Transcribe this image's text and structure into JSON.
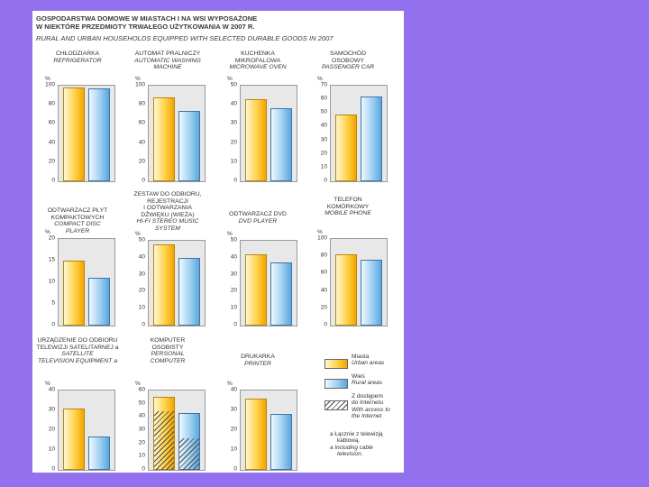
{
  "header": {
    "title_pl_line1": "GOSPODARSTWA DOMOWE W  MIASTACH I NA WSI WYPOSAŻONE",
    "title_pl_line2": "W NIEKTÓRE PRZEDMIOTY TRWAŁEGO UŻYTKOWANIA W 2007 R.",
    "title_en": "RURAL AND URBAN HOUSEHOLDS EQUIPPED WITH SELECTED DURABLE GOODS IN 2007"
  },
  "colors": {
    "urban": "#ffd24a",
    "rural": "#9fd0f2",
    "background": "#9370ee"
  },
  "legend": {
    "urban_pl": "Miasta",
    "urban_en": "Urban areas",
    "rural_pl": "Wieś",
    "rural_en": "Rural areas",
    "internet_pl_1": "Z dostępem",
    "internet_pl_2": "do Internetu",
    "internet_en_1": "With access to",
    "internet_en_2": "the Internet"
  },
  "footnote": {
    "pl_1": "a  Łącznie z telewizją",
    "pl_2": "kablową.",
    "en_1": "a  Including cable",
    "en_2": "television."
  },
  "chart_data": [
    {
      "type": "bar",
      "label_pl": [
        "CHŁODZIARKA"
      ],
      "label_en": [
        "REFRIGERATOR"
      ],
      "unit": "%",
      "ylim": [
        0,
        100
      ],
      "ticks": [
        0,
        20,
        40,
        60,
        80,
        100
      ],
      "categories": [
        "Urban",
        "Rural"
      ],
      "values": [
        98,
        97
      ]
    },
    {
      "type": "bar",
      "label_pl": [
        "AUTOMAT PRALNICZY"
      ],
      "label_en": [
        "AUTOMATIC WASHING",
        "MACHINE"
      ],
      "unit": "%",
      "ylim": [
        0,
        100
      ],
      "ticks": [
        0,
        20,
        40,
        60,
        80,
        100
      ],
      "categories": [
        "Urban",
        "Rural"
      ],
      "values": [
        88,
        74
      ]
    },
    {
      "type": "bar",
      "label_pl": [
        "KUCHENKA",
        "MIKROFALOWA"
      ],
      "label_en": [
        "MICROWAVE OVEN"
      ],
      "unit": "%",
      "ylim": [
        0,
        50
      ],
      "ticks": [
        0,
        10,
        20,
        30,
        40,
        50
      ],
      "categories": [
        "Urban",
        "Rural"
      ],
      "values": [
        43,
        38
      ]
    },
    {
      "type": "bar",
      "label_pl": [
        "SAMOCHÓD",
        "OSOBOWY"
      ],
      "label_en": [
        "PASSENGER CAR"
      ],
      "unit": "%",
      "ylim": [
        0,
        70
      ],
      "ticks": [
        0,
        10,
        20,
        30,
        40,
        50,
        60,
        70
      ],
      "categories": [
        "Urban",
        "Rural"
      ],
      "values": [
        49,
        62
      ]
    },
    {
      "type": "bar",
      "label_pl": [
        "ODTWARZACZ PŁYT",
        "KOMPAKTOWYCH"
      ],
      "label_en": [
        "COMPACT DISC",
        "PLAYER"
      ],
      "unit": "%",
      "ylim": [
        0,
        20
      ],
      "ticks": [
        0,
        5,
        10,
        15,
        20
      ],
      "categories": [
        "Urban",
        "Rural"
      ],
      "values": [
        15,
        11
      ]
    },
    {
      "type": "bar",
      "label_pl": [
        "ZESTAW DO ODBIORU,",
        "REJESTRACJI",
        "I ODTWARZANIA",
        "DŹWIĘKU (WIEŻA)"
      ],
      "label_en": [
        "HI-FI STEREO MUSIC",
        "SYSTEM"
      ],
      "unit": "%",
      "ylim": [
        0,
        50
      ],
      "ticks": [
        0,
        10,
        20,
        30,
        40,
        50
      ],
      "categories": [
        "Urban",
        "Rural"
      ],
      "values": [
        48,
        40
      ]
    },
    {
      "type": "bar",
      "label_pl": [
        "ODTWARZACZ DVD"
      ],
      "label_en": [
        "DVD PLAYER"
      ],
      "unit": "%",
      "ylim": [
        0,
        50
      ],
      "ticks": [
        0,
        10,
        20,
        30,
        40,
        50
      ],
      "categories": [
        "Urban",
        "Rural"
      ],
      "values": [
        42,
        37
      ]
    },
    {
      "type": "bar",
      "label_pl": [
        "TELEFON",
        "KOMÓRKOWY"
      ],
      "label_en": [
        "MOBILE PHONE"
      ],
      "unit": "%",
      "ylim": [
        0,
        100
      ],
      "ticks": [
        0,
        20,
        40,
        60,
        80,
        100
      ],
      "categories": [
        "Urban",
        "Rural"
      ],
      "values": [
        82,
        76
      ]
    },
    {
      "type": "bar",
      "label_pl": [
        "URZĄDZENIE DO ODBIORU",
        "TELEWIZJI SATELITARNEJ a"
      ],
      "label_en": [
        "SATELLITE",
        "TELEVISION EQUIPMENT a"
      ],
      "unit": "%",
      "ylim": [
        0,
        40
      ],
      "ticks": [
        0,
        10,
        20,
        30,
        40
      ],
      "categories": [
        "Urban",
        "Rural"
      ],
      "values": [
        31,
        17
      ]
    },
    {
      "type": "bar",
      "label_pl": [
        "KOMPUTER",
        "OSOBISTY"
      ],
      "label_en": [
        "PERSONAL",
        "COMPUTER"
      ],
      "unit": "%",
      "ylim": [
        0,
        60
      ],
      "ticks": [
        0,
        10,
        20,
        30,
        40,
        50,
        60
      ],
      "categories": [
        "Urban",
        "Rural"
      ],
      "values": [
        55,
        43
      ],
      "internet_values": [
        44,
        24
      ]
    },
    {
      "type": "bar",
      "label_pl": [
        "DRUKARKA"
      ],
      "label_en": [
        "PRINTER"
      ],
      "unit": "%",
      "ylim": [
        0,
        40
      ],
      "ticks": [
        0,
        10,
        20,
        30,
        40
      ],
      "categories": [
        "Urban",
        "Rural"
      ],
      "values": [
        36,
        28
      ]
    }
  ]
}
